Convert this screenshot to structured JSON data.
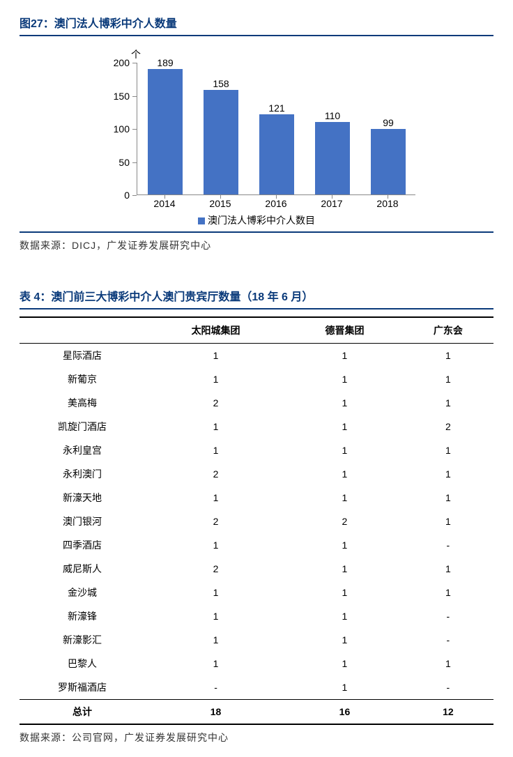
{
  "figure27": {
    "title": "图27：澳门法人博彩中介人数量",
    "y_axis_title": "个",
    "chart": {
      "type": "bar",
      "categories": [
        "2014",
        "2015",
        "2016",
        "2017",
        "2018"
      ],
      "values": [
        189,
        158,
        121,
        110,
        99
      ],
      "bar_color": "#4472c4",
      "ylim": [
        0,
        200
      ],
      "ytick_step": 50,
      "yticks": [
        "0",
        "50",
        "100",
        "150",
        "200"
      ],
      "legend_label": "澳门法人博彩中介人数目",
      "axis_color": "#888888",
      "label_fontsize": 14
    },
    "source": "数据来源：DICJ，广发证券发展研究中心"
  },
  "table4": {
    "title": "表 4：澳门前三大博彩中介人澳门贵宾厅数量（18 年 6 月）",
    "columns": [
      "",
      "太阳城集团",
      "德晋集团",
      "广东会"
    ],
    "rows": [
      [
        "星际酒店",
        "1",
        "1",
        "1"
      ],
      [
        "新葡京",
        "1",
        "1",
        "1"
      ],
      [
        "美高梅",
        "2",
        "1",
        "1"
      ],
      [
        "凯旋门酒店",
        "1",
        "1",
        "2"
      ],
      [
        "永利皇宫",
        "1",
        "1",
        "1"
      ],
      [
        "永利澳门",
        "2",
        "1",
        "1"
      ],
      [
        "新濠天地",
        "1",
        "1",
        "1"
      ],
      [
        "澳门银河",
        "2",
        "2",
        "1"
      ],
      [
        "四季酒店",
        "1",
        "1",
        "-"
      ],
      [
        "威尼斯人",
        "2",
        "1",
        "1"
      ],
      [
        "金沙城",
        "1",
        "1",
        "1"
      ],
      [
        "新濠锋",
        "1",
        "1",
        "-"
      ],
      [
        "新濠影汇",
        "1",
        "1",
        "-"
      ],
      [
        "巴黎人",
        "1",
        "1",
        "1"
      ],
      [
        "罗斯福酒店",
        "-",
        "1",
        "-"
      ]
    ],
    "total_row": [
      "总计",
      "18",
      "16",
      "12"
    ],
    "source": "数据来源：公司官网，广发证券发展研究中心"
  }
}
